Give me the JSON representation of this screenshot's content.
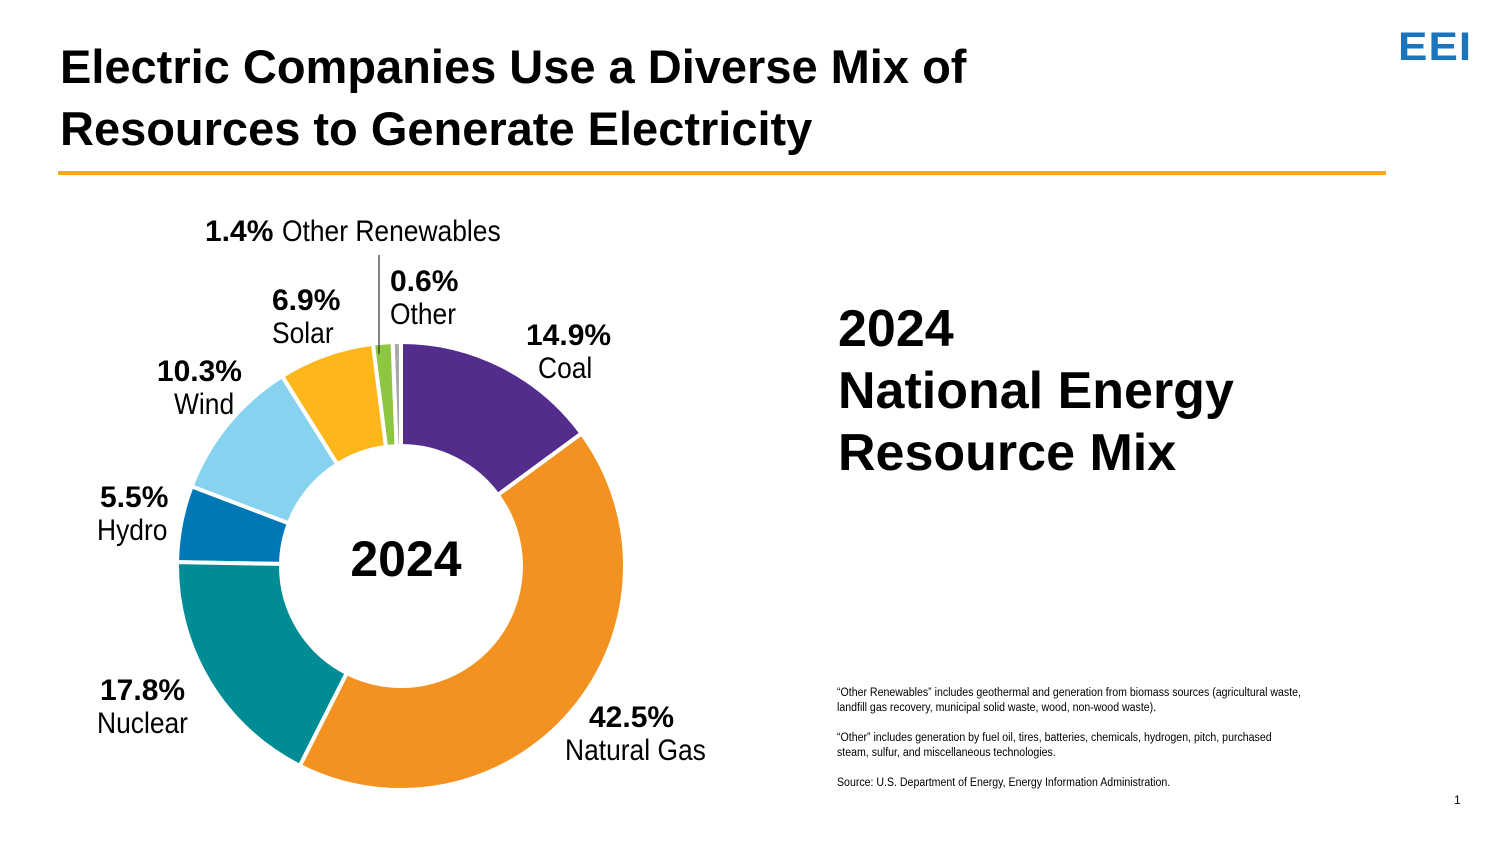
{
  "header": {
    "title_line1": "Electric Companies Use a Diverse Mix of",
    "title_line2": "Resources to Generate Electricity",
    "logo": "EEI",
    "accent_color": "#f5a623",
    "logo_color": "#1a75bc"
  },
  "chart_data": {
    "type": "pie",
    "donut": true,
    "center_label": "2024",
    "start": "top",
    "direction": "clockwise",
    "slices": [
      {
        "name": "Coal",
        "label": "14.9%",
        "value": 14.9,
        "color": "#522d8c"
      },
      {
        "name": "Natural Gas",
        "label": "42.5%",
        "value": 42.5,
        "color": "#f39220"
      },
      {
        "name": "Nuclear",
        "label": "17.8%",
        "value": 17.8,
        "color": "#008c95"
      },
      {
        "name": "Hydro",
        "label": "5.5%",
        "value": 5.5,
        "color": "#0077b6"
      },
      {
        "name": "Wind",
        "label": "10.3%",
        "value": 10.3,
        "color": "#87d3ef"
      },
      {
        "name": "Solar",
        "label": "6.9%",
        "value": 6.9,
        "color": "#fdb71a"
      },
      {
        "name": "Other Renewables",
        "label": "1.4%",
        "value": 1.4,
        "color": "#8dc63f"
      },
      {
        "name": "Other",
        "label": "0.6%",
        "value": 0.6,
        "color": "#a7a9ac"
      }
    ]
  },
  "side": {
    "line1": "2024",
    "line2": "National Energy",
    "line3": "Resource Mix"
  },
  "notes": [
    "“Other Renewables” includes geothermal and generation from biomass sources (agricultural waste, landfill gas recovery, municipal solid waste, wood, non-wood waste).",
    "“Other” includes generation by fuel oil, tires, batteries, chemicals, hydrogen, pitch, purchased steam, sulfur, and miscellaneous technologies.",
    "Source: U.S. Department of Energy, Energy Information Administration."
  ],
  "page_number": "1"
}
